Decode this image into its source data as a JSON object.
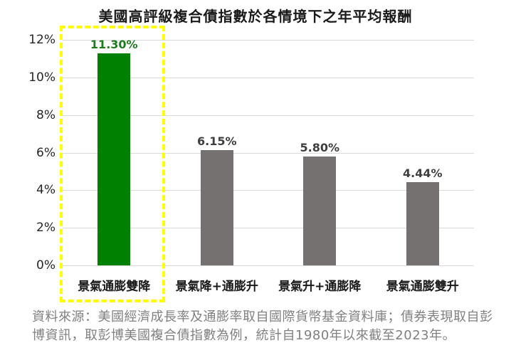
{
  "page": {
    "background_color": "#ffffff"
  },
  "chart_data": {
    "type": "bar",
    "title": "美國高評級複合債指數於各情境下之年平均報酬",
    "categories": [
      "景氣通膨雙降",
      "景氣降+通膨升",
      "景氣升+通膨降",
      "景氣通膨雙升"
    ],
    "values": [
      11.3,
      6.15,
      5.8,
      4.44
    ],
    "value_labels": [
      "11.30%",
      "6.15%",
      "5.80%",
      "4.44%"
    ],
    "bar_colors": [
      "#008000",
      "#767171",
      "#767171",
      "#767171"
    ],
    "value_label_colors": [
      "#1e7b1e",
      "#3f3f3f",
      "#3f3f3f",
      "#3f3f3f"
    ],
    "xlabel": "",
    "ylabel": "",
    "ylim": [
      0,
      12
    ],
    "ytick_labels": [
      "0%",
      "2%",
      "4%",
      "6%",
      "8%",
      "10%",
      "12%"
    ],
    "ytick_values": [
      0,
      2,
      4,
      6,
      8,
      10,
      12
    ],
    "grid": true,
    "gridline_color": "#d9d9d9",
    "legend": "none",
    "highlight": {
      "category_index": 0,
      "style": "dashed-box",
      "color": "#ffff00"
    }
  },
  "footer": {
    "source_text": "資料來源：美國經濟成長率及通膨率取自國際貨幣基金資料庫；債券表現取自彭博資訊，取彭博美國複合債指數為例，統計自1980年以來截至2023年。"
  }
}
